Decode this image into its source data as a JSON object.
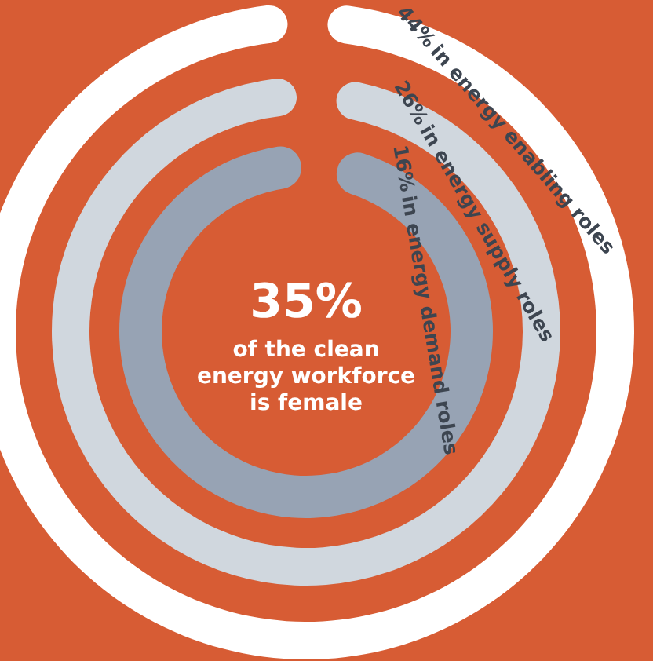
{
  "chart_data": {
    "type": "other",
    "categories": [
      "in energy enabling roles",
      "in energy supply roles",
      "in energy demand roles"
    ],
    "values": [
      44,
      26,
      16
    ],
    "value_labels": [
      "44%",
      "26%",
      "16%"
    ],
    "colors": [
      "#ffffff",
      "#d0d7de",
      "#97a3b4"
    ],
    "annotations": [
      "35%",
      "of the clean energy workforce is female"
    ]
  }
}
